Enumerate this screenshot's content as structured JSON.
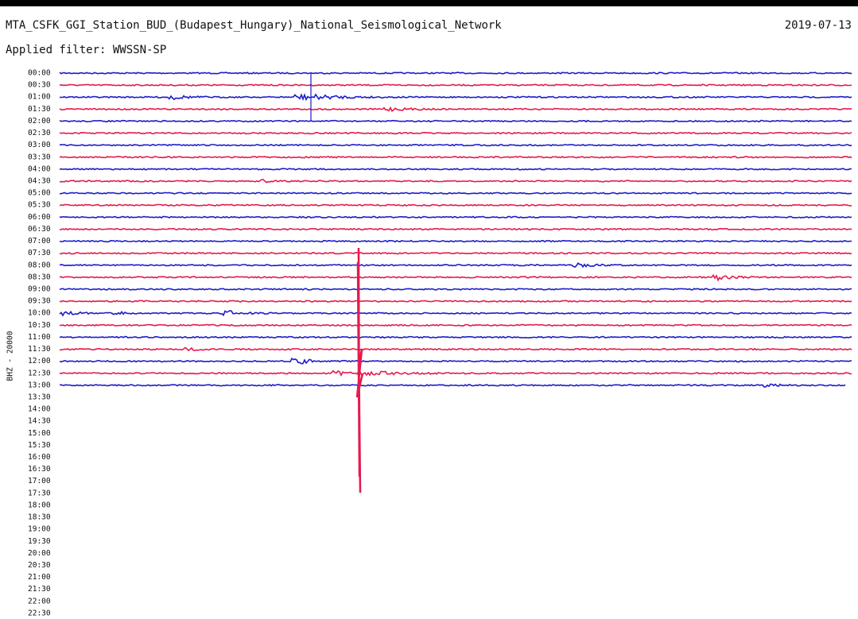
{
  "header": {
    "title": "MTA_CSFK_GGI_Station_BUD_(Budapest_Hungary)_National_Seismological_Network",
    "date": "2019-07-13",
    "filter": "Applied filter: WWSSN-SP"
  },
  "side_label": "BHZ - 20000",
  "time_labels": [
    "00:00",
    "00:30",
    "01:00",
    "01:30",
    "02:00",
    "02:30",
    "03:00",
    "03:30",
    "04:00",
    "04:30",
    "05:00",
    "05:30",
    "06:00",
    "06:30",
    "07:00",
    "07:30",
    "08:00",
    "08:30",
    "09:00",
    "09:30",
    "10:00",
    "10:30",
    "11:00",
    "11:30",
    "12:00",
    "12:30",
    "13:00",
    "13:30",
    "14:00",
    "14:30",
    "15:00",
    "15:30",
    "16:00",
    "16:30",
    "17:00",
    "17:30",
    "18:00",
    "18:30",
    "19:00",
    "19:30",
    "20:00",
    "20:30",
    "21:00",
    "21:30",
    "22:00",
    "22:30"
  ]
}
